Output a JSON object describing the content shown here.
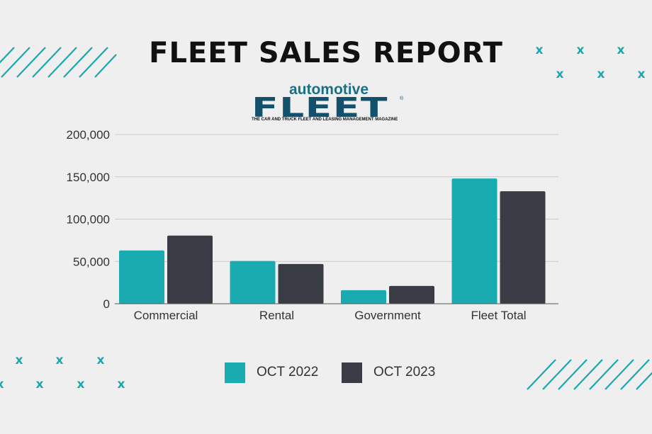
{
  "title": "FLEET SALES REPORT",
  "logo": {
    "small_text": "automotive",
    "big_text": "FLEET",
    "registered_mark": "®",
    "tagline": "THE CAR AND TRUCK FLEET AND LEASING MANAGEMENT MAGAZINE"
  },
  "decorations": {
    "x_glyph": "x",
    "color": "#1aa7ad"
  },
  "colors": {
    "oct_2022": "#1aabb0",
    "oct_2023": "#393c44",
    "background": "#efefef"
  },
  "chart_data": {
    "type": "bar",
    "categories": [
      "Commercial",
      "Rental",
      "Government",
      "Fleet Total"
    ],
    "series": [
      {
        "name": "OCT 2022",
        "values": [
          63000,
          50500,
          16000,
          148000
        ]
      },
      {
        "name": "OCT 2023",
        "values": [
          80500,
          47000,
          21000,
          133000
        ]
      }
    ],
    "ylim": [
      0,
      200000
    ],
    "yticks": [
      0,
      50000,
      100000,
      150000,
      200000
    ],
    "ytick_labels": [
      "0",
      "50,000",
      "100,000",
      "150,000",
      "200,000"
    ],
    "grid": true,
    "legend_position": "bottom-center"
  }
}
